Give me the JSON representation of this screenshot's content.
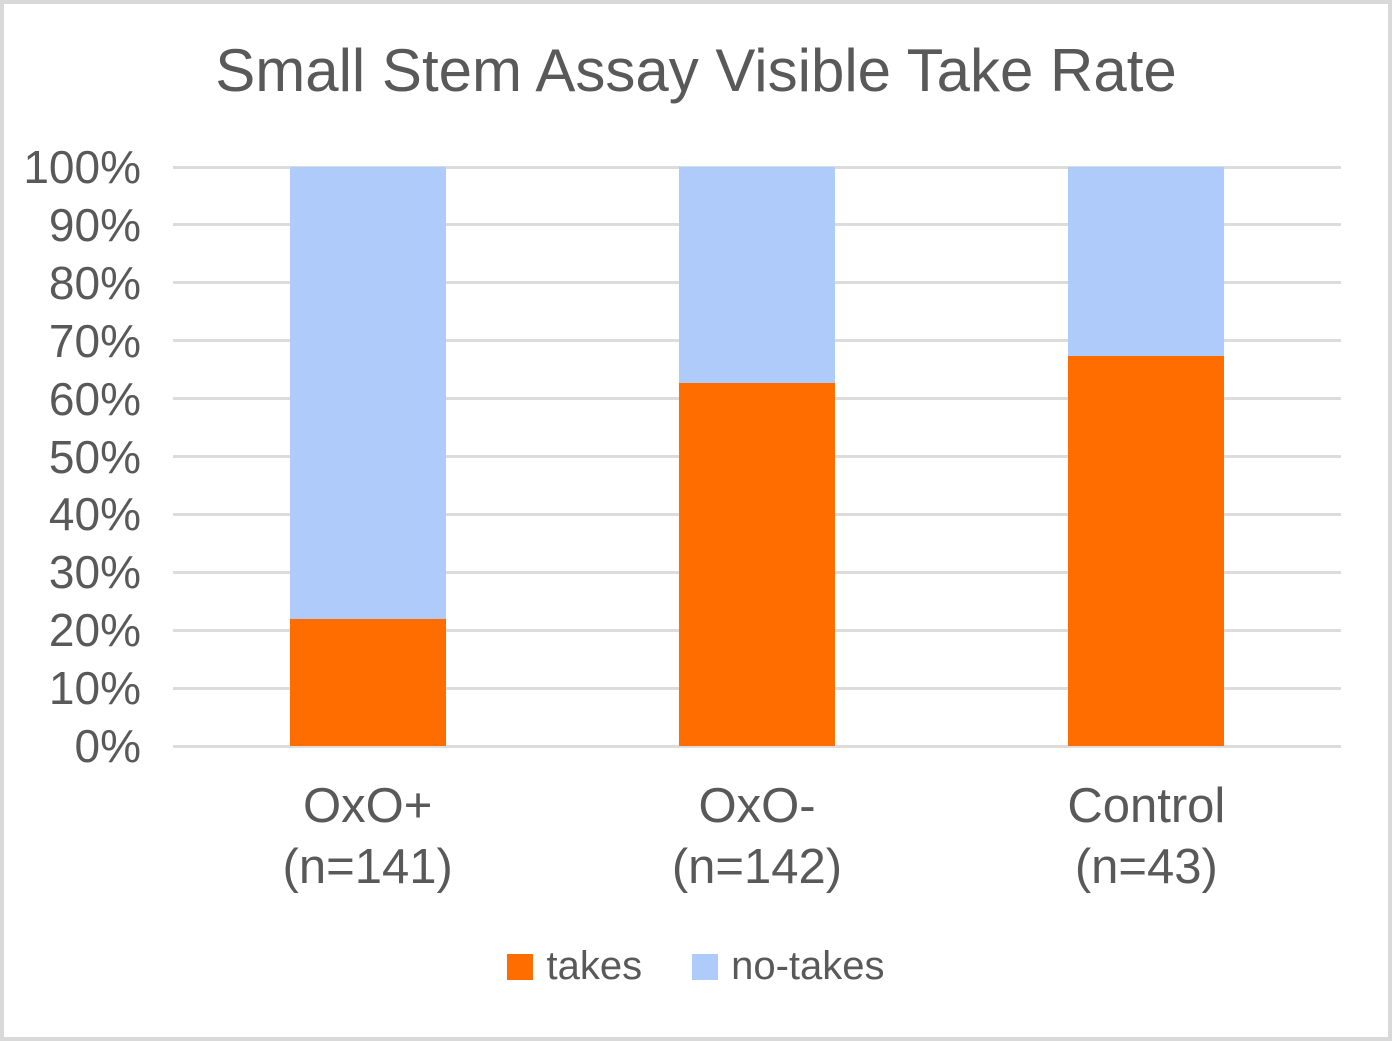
{
  "window": {
    "background_color": "#ffffff",
    "border_color": "#d9d9d9"
  },
  "chart_data": {
    "type": "bar",
    "stacked": true,
    "orientation": "vertical",
    "title": "Small Stem Assay Visible Take Rate",
    "title_color": "#595959",
    "categories": [
      {
        "line1": "OxO+",
        "line2": "(n=141)"
      },
      {
        "line1": "OxO-",
        "line2": "(n=142)"
      },
      {
        "line1": "Control",
        "line2": "(n=43)"
      }
    ],
    "series": [
      {
        "name": "takes",
        "color": "#FF6D01",
        "values": [
          22.0,
          62.7,
          67.4
        ]
      },
      {
        "name": "no-takes",
        "color": "#AECBFA",
        "values": [
          78.0,
          37.3,
          32.6
        ]
      }
    ],
    "xlabel": "",
    "ylabel": "",
    "ylim": [
      0,
      100
    ],
    "yticks": [
      "0%",
      "10%",
      "20%",
      "30%",
      "40%",
      "50%",
      "60%",
      "70%",
      "80%",
      "90%",
      "100%"
    ],
    "grid": "horizontal",
    "gridline_color": "#dcdcdc",
    "axis_text_color": "#595959",
    "legend_position": "bottom",
    "legend": [
      {
        "label": "takes",
        "color": "#FF6D01"
      },
      {
        "label": "no-takes",
        "color": "#AECBFA"
      }
    ]
  }
}
